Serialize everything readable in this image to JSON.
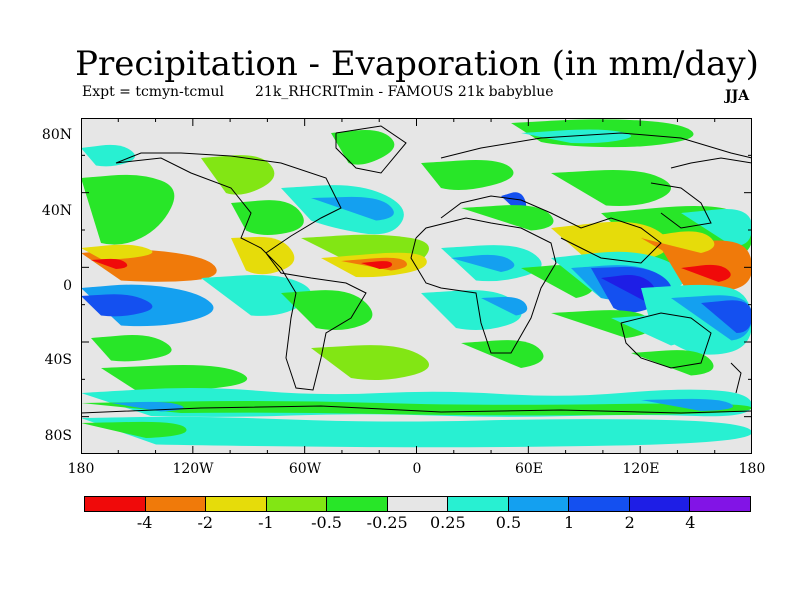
{
  "header": {
    "title": "Precipitation - Evaporation (in mm/day)",
    "expt": "Expt = tcmyn-tcmul",
    "description": "21k_RHCRITmin - FAMOUS 21k babyblue",
    "season": "JJA"
  },
  "axes": {
    "lat_labels": [
      "80N",
      "40N",
      "0",
      "40S",
      "80S"
    ],
    "lon_labels": [
      "180",
      "120W",
      "60W",
      "0",
      "60E",
      "120E",
      "180"
    ]
  },
  "colorbar": {
    "colors": [
      "#f00a0a",
      "#f07a0a",
      "#e6dc0a",
      "#82e614",
      "#28e628",
      "#e6e6e6",
      "#28f0d2",
      "#14a0f0",
      "#1450f0",
      "#1e1ee6",
      "#8214e6"
    ],
    "labels": [
      "-4",
      "-2",
      "-1",
      "-0.5",
      "-0.25",
      "0.25",
      "0.5",
      "1",
      "2",
      "4"
    ]
  },
  "colors": {
    "neutral": "#e6e6e6",
    "coast": "#000000"
  }
}
